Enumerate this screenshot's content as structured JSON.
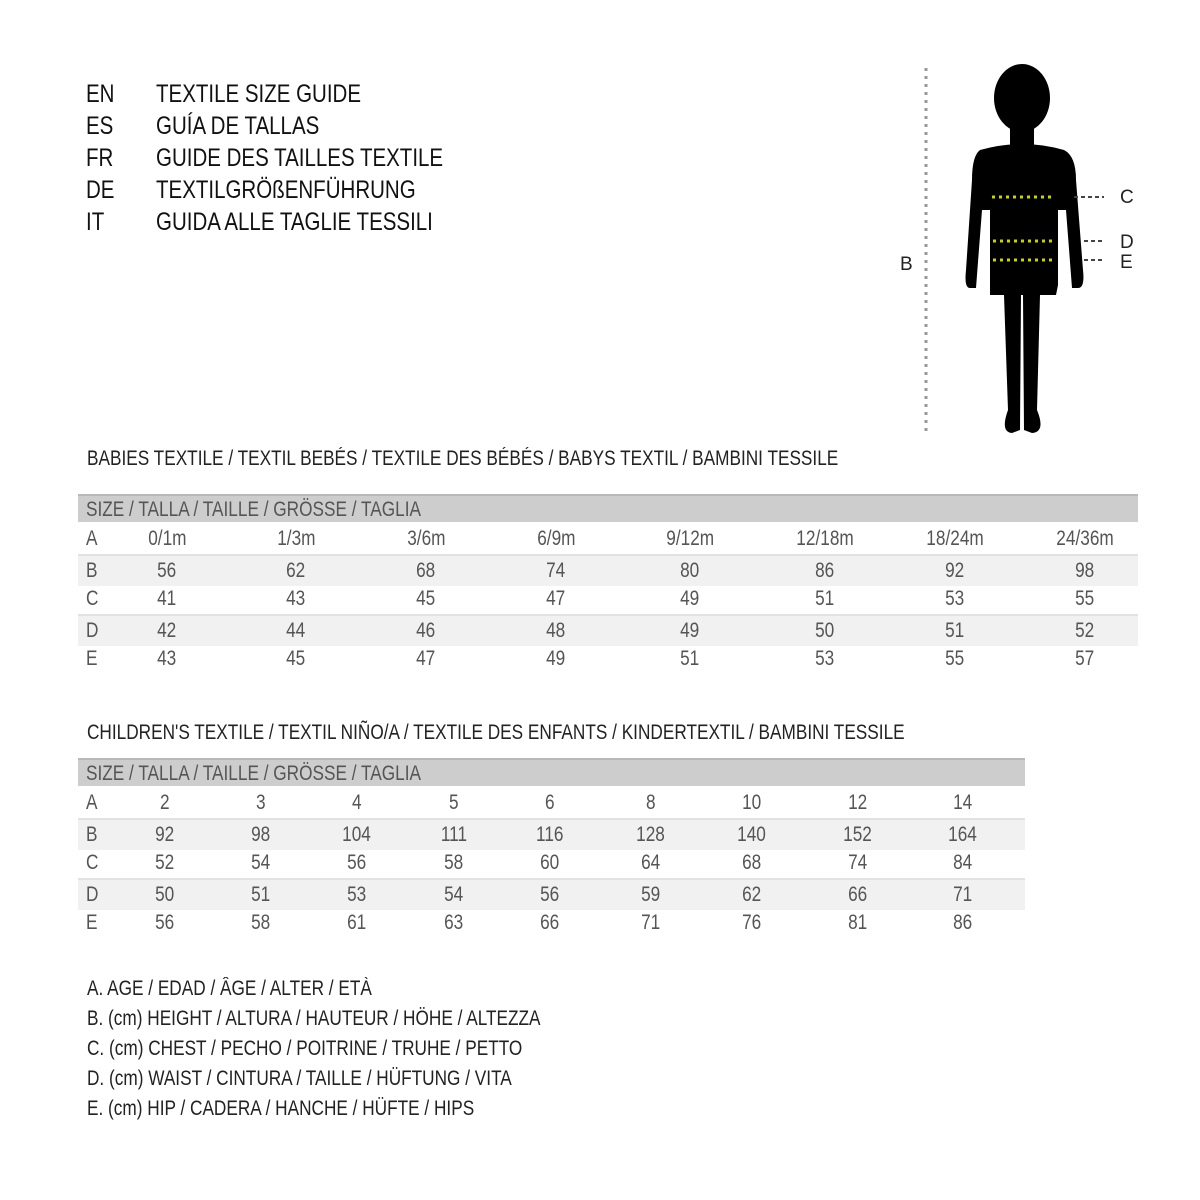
{
  "titles": [
    {
      "lang": "EN",
      "text": "TEXTILE SIZE GUIDE"
    },
    {
      "lang": "ES",
      "text": "GUÍA DE TALLAS"
    },
    {
      "lang": "FR",
      "text": "GUIDE DES TAILLES TEXTILE"
    },
    {
      "lang": "DE",
      "text": "TEXTILGRÖßENFÜHRUNG"
    },
    {
      "lang": "IT",
      "text": "GUIDA ALLE TAGLIE TESSILI"
    }
  ],
  "figure": {
    "labels": {
      "B": "B",
      "C": "C",
      "D": "D",
      "E": "E"
    },
    "marker_color": "#c8d400",
    "icon": "child-silhouette-icon"
  },
  "babies": {
    "title": "BABIES TEXTILE / TEXTIL BEBÉS / TEXTILE DES BÉBÉS / BABYS TEXTIL  / BAMBINI TESSILE",
    "header": "SIZE / TALLA / TAILLE / GRÖSSE / TAGLIA",
    "rows": [
      {
        "label": "A",
        "values": [
          "0/1m",
          "1/3m",
          "3/6m",
          "6/9m",
          "9/12m",
          "12/18m",
          "18/24m",
          "24/36m"
        ]
      },
      {
        "label": "B",
        "values": [
          "56",
          "62",
          "68",
          "74",
          "80",
          "86",
          "92",
          "98"
        ]
      },
      {
        "label": "C",
        "values": [
          "41",
          "43",
          "45",
          "47",
          "49",
          "51",
          "53",
          "55"
        ]
      },
      {
        "label": "D",
        "values": [
          "42",
          "44",
          "46",
          "48",
          "49",
          "50",
          "51",
          "52"
        ]
      },
      {
        "label": "E",
        "values": [
          "43",
          "45",
          "47",
          "49",
          "51",
          "53",
          "55",
          "57"
        ]
      }
    ]
  },
  "children": {
    "title": "CHILDREN'S TEXTILE / TEXTIL NIÑO/A / TEXTILE DES ENFANTS / KINDERTEXTIL / BAMBINI TESSILE",
    "header": "SIZE / TALLA / TAILLE / GRÖSSE / TAGLIA",
    "rows": [
      {
        "label": "A",
        "values": [
          "2",
          "3",
          "4",
          "5",
          "6",
          "8",
          "10",
          "12",
          "14"
        ]
      },
      {
        "label": "B",
        "values": [
          "92",
          "98",
          "104",
          "111",
          "116",
          "128",
          "140",
          "152",
          "164"
        ]
      },
      {
        "label": "C",
        "values": [
          "52",
          "54",
          "56",
          "58",
          "60",
          "64",
          "68",
          "74",
          "84"
        ]
      },
      {
        "label": "D",
        "values": [
          "50",
          "51",
          "53",
          "54",
          "56",
          "59",
          "62",
          "66",
          "71"
        ]
      },
      {
        "label": "E",
        "values": [
          "56",
          "58",
          "61",
          "63",
          "66",
          "71",
          "76",
          "81",
          "86"
        ]
      }
    ]
  },
  "legend": [
    "A. AGE / EDAD / ÂGE / ALTER / ETÀ",
    "B. (cm) HEIGHT / ALTURA / HAUTEUR / HÖHE / ALTEZZA",
    "C. (cm) CHEST / PECHO / POITRINE / TRUHE / PETTO",
    "D. (cm) WAIST / CINTURA / TAILLE / HÜFTUNG / VITA",
    "E. (cm) HIP / CADERA / HANCHE / HÜFTE / HIPS"
  ]
}
